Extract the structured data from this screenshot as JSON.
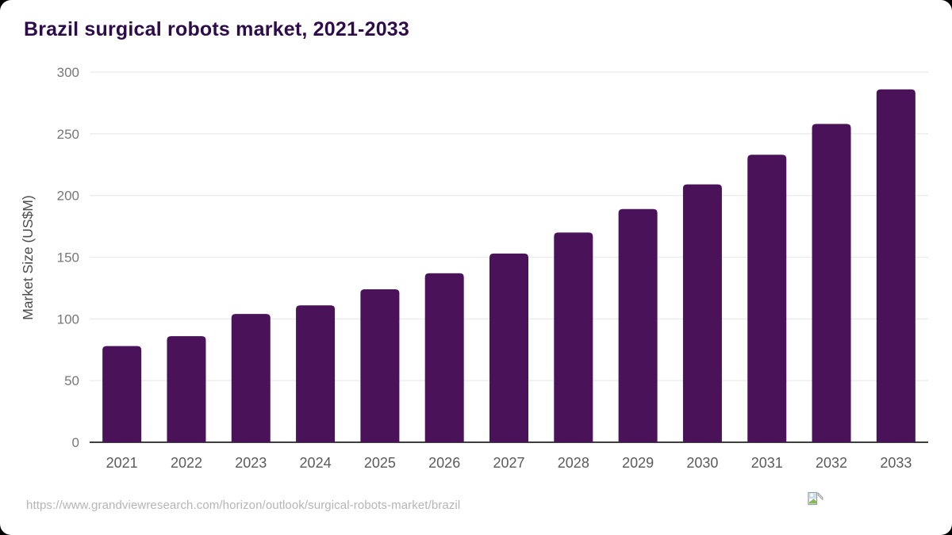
{
  "header": {
    "title": "Brazil surgical robots market, 2021-2033"
  },
  "footer": {
    "url": "https://www.grandviewresearch.com/horizon/outlook/surgical-robots-market/brazil",
    "icon": "broken-image-icon"
  },
  "colors": {
    "bar": "#4a1259",
    "title": "#2e0c4a",
    "grid": "#ebebeb",
    "axis_line": "#3f3f3f",
    "y_tick": "#777777",
    "x_tick": "#5a5a5a",
    "y_title": "#4c4c4c",
    "url_text": "#b5b5b5",
    "card_bg": "#ffffff",
    "backdrop": "#000000"
  },
  "chart_data": {
    "type": "bar",
    "title": "Brazil surgical robots market, 2021-2033",
    "categories": [
      "2021",
      "2022",
      "2023",
      "2024",
      "2025",
      "2026",
      "2027",
      "2028",
      "2029",
      "2030",
      "2031",
      "2032",
      "2033"
    ],
    "values": [
      78,
      86,
      104,
      111,
      124,
      137,
      153,
      170,
      189,
      209,
      233,
      258,
      286
    ],
    "xlabel": "",
    "ylabel": "Market Size (US$M)",
    "ylim": [
      0,
      300
    ],
    "yticks": [
      0,
      50,
      100,
      150,
      200,
      250,
      300
    ],
    "grid": true,
    "legend": "none",
    "bar_corner_radius": 5
  }
}
